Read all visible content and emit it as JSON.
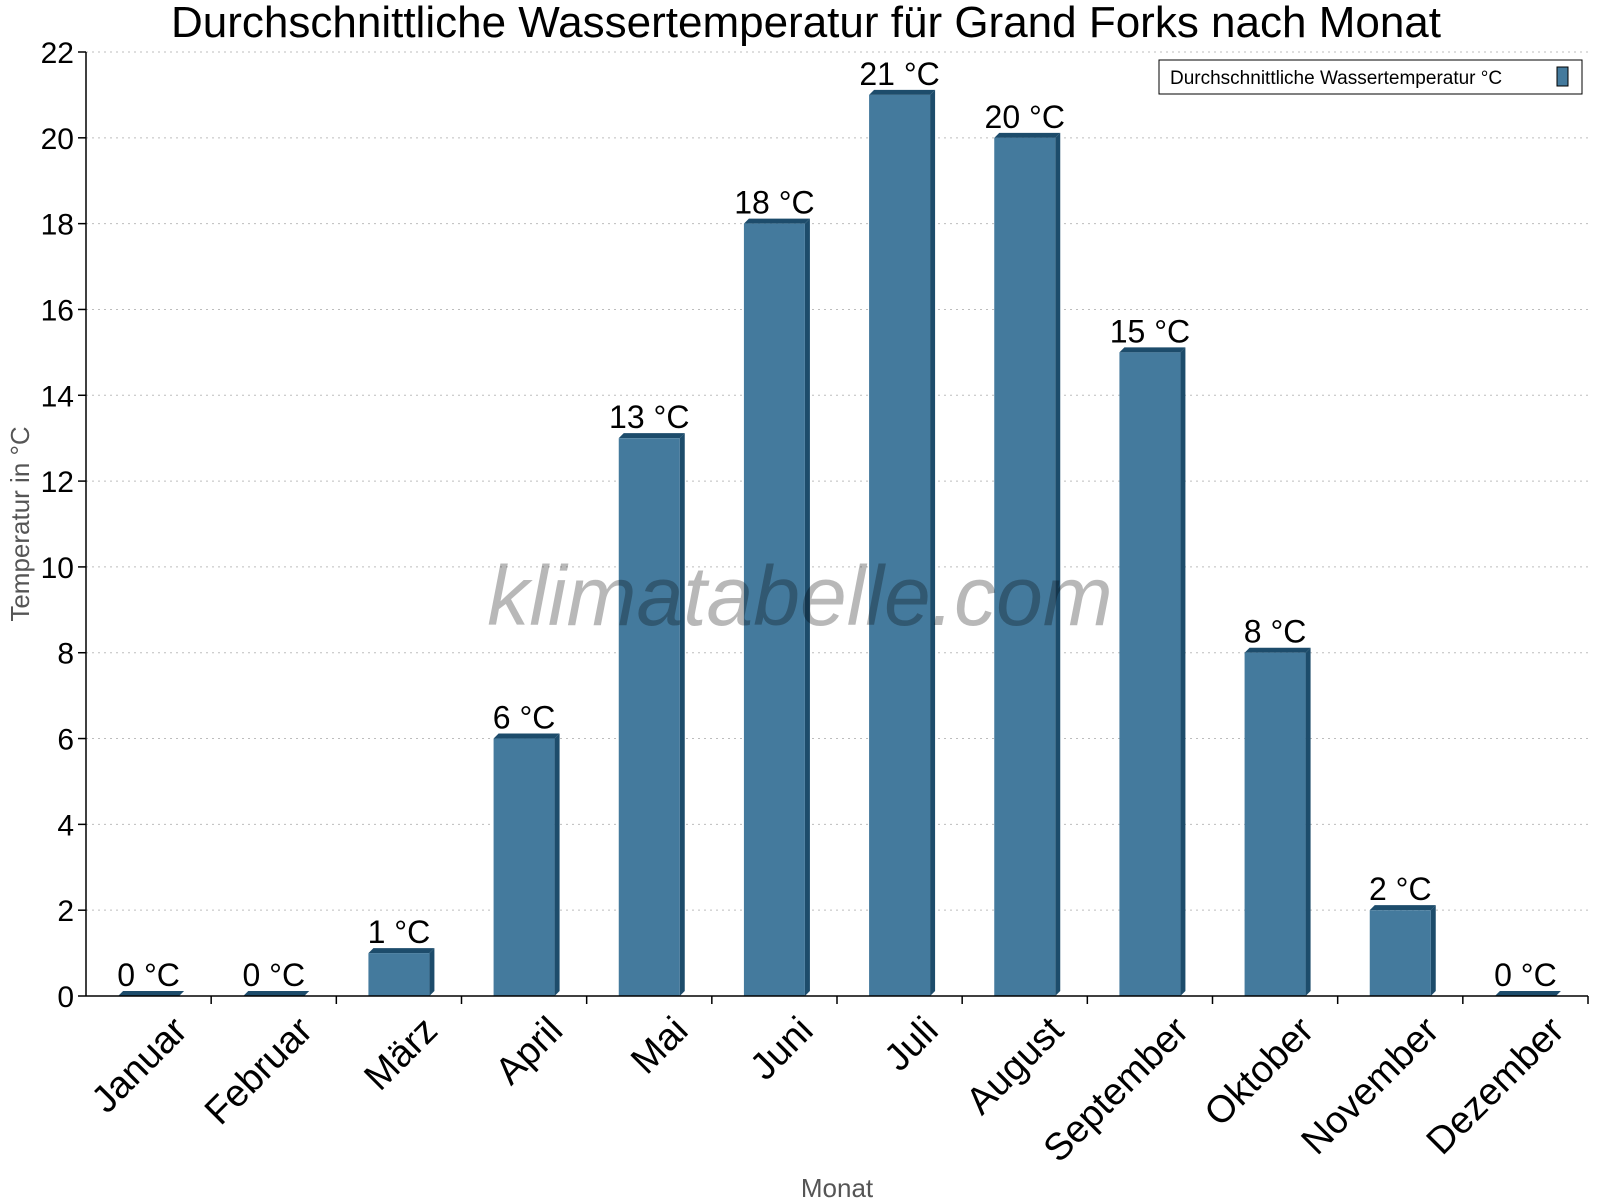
{
  "chart_data": {
    "type": "bar",
    "title": "Durchschnittliche Wassertemperatur für Grand Forks nach Monat",
    "xlabel": "Monat",
    "ylabel": "Temperatur in °C",
    "categories": [
      "Januar",
      "Februar",
      "März",
      "April",
      "Mai",
      "Juni",
      "Juli",
      "August",
      "September",
      "Oktober",
      "November",
      "Dezember"
    ],
    "series": [
      {
        "name": "Durchschnittliche Wassertemperatur °C",
        "values": [
          0,
          0,
          1,
          6,
          13,
          18,
          21,
          20,
          15,
          8,
          2,
          0
        ],
        "labels": [
          "0 °C",
          "0 °C",
          "1 °C",
          "6 °C",
          "13 °C",
          "18 °C",
          "21 °C",
          "20 °C",
          "15 °C",
          "8 °C",
          "2 °C",
          "0 °C"
        ],
        "color": "#447a9d",
        "edge_color": "#1d4c6b"
      }
    ],
    "ylim": [
      0,
      22
    ],
    "yticks": [
      "0",
      "2",
      "4",
      "6",
      "8",
      "10",
      "12",
      "14",
      "16",
      "18",
      "20",
      "22"
    ],
    "grid": true,
    "legend_position": "top-right",
    "watermark": "klimatabelle.com"
  }
}
